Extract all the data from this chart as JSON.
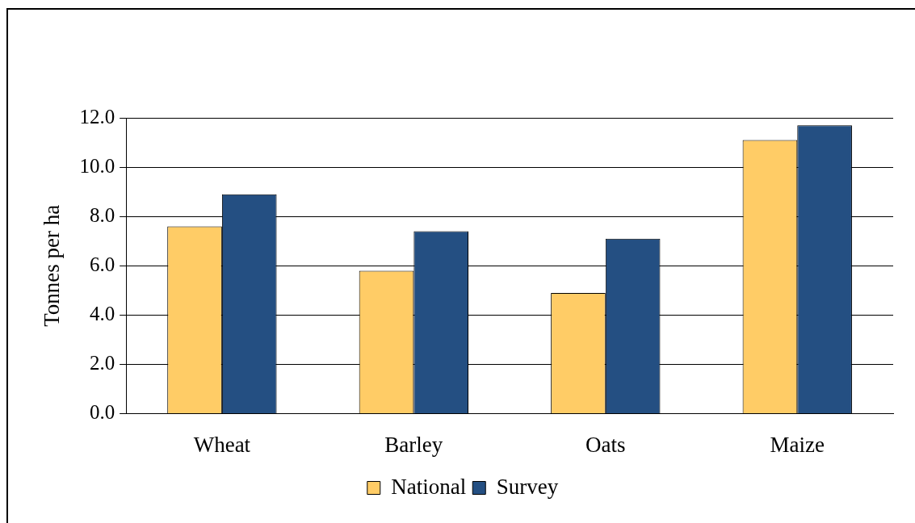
{
  "chart_data": {
    "type": "bar",
    "ylabel": "Tonnes per ha",
    "categories": [
      "Wheat",
      "Barley",
      "Oats",
      "Maize"
    ],
    "series": [
      {
        "name": "National",
        "color": "#ffcc66",
        "values": [
          7.6,
          5.8,
          4.9,
          11.1
        ]
      },
      {
        "name": "Survey",
        "color": "#244f82",
        "values": [
          8.9,
          7.4,
          7.1,
          11.7
        ]
      }
    ],
    "ylim": [
      0,
      12
    ],
    "yticks": [
      {
        "value": 0,
        "label": "0.0"
      },
      {
        "value": 2,
        "label": "2.0"
      },
      {
        "value": 4,
        "label": "4.0"
      },
      {
        "value": 6,
        "label": "6.0"
      },
      {
        "value": 8,
        "label": "8.0"
      },
      {
        "value": 10,
        "label": "10.0"
      },
      {
        "value": 12,
        "label": "12.0"
      }
    ],
    "grid": "y",
    "legend": "bottom"
  }
}
